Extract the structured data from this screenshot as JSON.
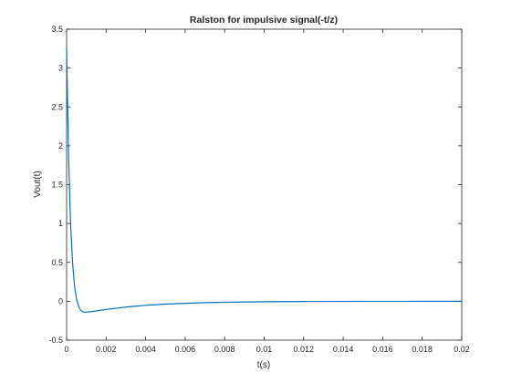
{
  "chart_data": {
    "type": "line",
    "title": "Ralston for impulsive signal(-t/z)",
    "xlabel": "t(s)",
    "ylabel": "Vout(t)",
    "xlim": [
      0,
      0.02
    ],
    "ylim": [
      -0.5,
      3.5
    ],
    "x_ticks": [
      0,
      0.002,
      0.004,
      0.006,
      0.008,
      0.01,
      0.012,
      0.014,
      0.016,
      0.018,
      0.02
    ],
    "x_tick_labels": [
      "0",
      "0.002",
      "0.004",
      "0.006",
      "0.008",
      "0.01",
      "0.012",
      "0.014",
      "0.016",
      "0.018",
      "0.02"
    ],
    "y_ticks": [
      -0.5,
      0,
      0.5,
      1,
      1.5,
      2,
      2.5,
      3,
      3.5
    ],
    "y_tick_labels": [
      "-0.5",
      "0",
      "0.5",
      "1",
      "1.5",
      "2",
      "2.5",
      "3",
      "3.5"
    ],
    "grid": false,
    "line_color": "#0072bd",
    "series": [
      {
        "x": [
          0,
          0.0001,
          0.0002,
          0.0003,
          0.0004,
          0.0005,
          0.0006,
          0.0007,
          0.0008,
          0.0009,
          0.001,
          0.0012,
          0.0014,
          0.0016,
          0.0018,
          0.002,
          0.0025,
          0.003,
          0.0035,
          0.004,
          0.005,
          0.006,
          0.007,
          0.008,
          0.009,
          0.01,
          0.011,
          0.012,
          0.013,
          0.014,
          0.015,
          0.016,
          0.017,
          0.018,
          0.019,
          0.02
        ],
        "y": [
          3.25,
          1.85,
          1.0,
          0.5,
          0.2,
          0.03,
          -0.06,
          -0.11,
          -0.135,
          -0.14,
          -0.14,
          -0.135,
          -0.128,
          -0.12,
          -0.112,
          -0.105,
          -0.09,
          -0.075,
          -0.063,
          -0.052,
          -0.037,
          -0.026,
          -0.018,
          -0.013,
          -0.009,
          -0.006,
          -0.004,
          -0.003,
          -0.002,
          -0.0015,
          -0.001,
          -0.0007,
          -0.0005,
          -0.0003,
          -0.0002,
          -0.0001
        ]
      }
    ]
  }
}
